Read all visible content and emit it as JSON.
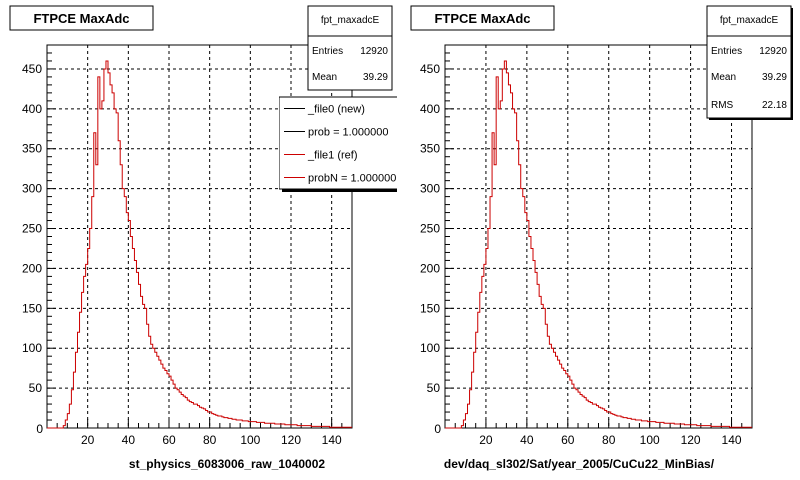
{
  "chart_data": [
    {
      "type": "histogram",
      "title": "FTPCE MaxAdc",
      "xlabel": "st_physics_6083006_raw_1040002",
      "ylabel": "",
      "xlim": [
        0,
        150
      ],
      "ylim": [
        0,
        480
      ],
      "xticks": [
        20,
        40,
        60,
        80,
        100,
        120,
        140
      ],
      "yticks": [
        50,
        100,
        150,
        200,
        250,
        300,
        350,
        400,
        450
      ],
      "grid": true,
      "bin_width": 1,
      "bin_start": 0,
      "series": [
        {
          "name": "_file1 (ref)",
          "color": "#cc0000",
          "values": [
            0,
            0,
            0,
            0,
            0,
            0,
            0,
            0,
            3,
            10,
            18,
            30,
            48,
            70,
            95,
            120,
            145,
            170,
            190,
            205,
            225,
            250,
            290,
            370,
            330,
            440,
            400,
            410,
            450,
            460,
            445,
            430,
            420,
            400,
            395,
            360,
            330,
            300,
            290,
            270,
            260,
            240,
            225,
            210,
            195,
            180,
            165,
            155,
            150,
            130,
            115,
            105,
            100,
            95,
            90,
            85,
            80,
            75,
            72,
            68,
            65,
            60,
            55,
            50,
            48,
            45,
            42,
            40,
            38,
            35,
            33,
            32,
            30,
            30,
            28,
            26,
            25,
            24,
            22,
            20,
            20,
            18,
            17,
            16,
            15,
            15,
            14,
            13,
            13,
            12,
            12,
            11,
            11,
            10,
            10,
            10,
            9,
            9,
            9,
            8,
            8,
            8,
            8,
            7,
            7,
            7,
            7,
            6,
            6,
            6,
            6,
            6,
            5,
            5,
            5,
            5,
            5,
            4,
            4,
            4,
            4,
            4,
            4,
            3,
            3,
            3,
            3,
            3,
            3,
            3,
            2,
            2,
            2,
            2,
            2,
            2,
            2,
            2,
            2,
            1,
            1,
            1,
            1,
            1,
            1,
            1,
            1,
            1,
            1,
            1
          ]
        }
      ],
      "stats": {
        "name": "fpt_maxadcE",
        "entries_label": "Entries",
        "entries": "12920",
        "mean_label": "Mean",
        "mean": "39.29"
      },
      "legend": {
        "items": [
          {
            "label": "_file0 (new)",
            "color": "#000000"
          },
          {
            "label": "prob = 1.000000",
            "color": "#000000"
          },
          {
            "label": "_file1 (ref)",
            "color": "#cc0000"
          },
          {
            "label": "probN = 1.000000",
            "color": "#cc0000"
          }
        ]
      }
    },
    {
      "type": "histogram",
      "title": "FTPCE MaxAdc",
      "xlabel": "dev/daq_sl302/Sat/year_2005/CuCu22_MinBias/",
      "ylabel": "",
      "xlim": [
        0,
        150
      ],
      "ylim": [
        0,
        480
      ],
      "xticks": [
        20,
        40,
        60,
        80,
        100,
        120,
        140
      ],
      "yticks": [
        50,
        100,
        150,
        200,
        250,
        300,
        350,
        400,
        450
      ],
      "grid": true,
      "bin_width": 1,
      "bin_start": 0,
      "series": [
        {
          "name": "",
          "color": "#cc0000",
          "values": [
            0,
            0,
            0,
            0,
            0,
            0,
            0,
            0,
            3,
            10,
            18,
            30,
            48,
            70,
            95,
            120,
            145,
            170,
            190,
            205,
            225,
            250,
            290,
            370,
            330,
            440,
            400,
            410,
            450,
            460,
            445,
            430,
            420,
            400,
            395,
            360,
            330,
            300,
            290,
            270,
            260,
            240,
            225,
            210,
            195,
            180,
            165,
            155,
            150,
            130,
            115,
            105,
            100,
            95,
            90,
            85,
            80,
            75,
            72,
            68,
            65,
            60,
            55,
            50,
            48,
            45,
            42,
            40,
            38,
            35,
            33,
            32,
            30,
            30,
            28,
            26,
            25,
            24,
            22,
            20,
            20,
            18,
            17,
            16,
            15,
            15,
            14,
            13,
            13,
            12,
            12,
            11,
            11,
            10,
            10,
            10,
            9,
            9,
            9,
            8,
            8,
            8,
            8,
            7,
            7,
            7,
            7,
            6,
            6,
            6,
            6,
            6,
            5,
            5,
            5,
            5,
            5,
            4,
            4,
            4,
            4,
            4,
            4,
            3,
            3,
            3,
            3,
            3,
            3,
            3,
            2,
            2,
            2,
            2,
            2,
            2,
            2,
            2,
            2,
            1,
            1,
            1,
            1,
            1,
            1,
            1,
            1,
            1,
            1,
            1
          ]
        }
      ],
      "stats": {
        "name": "fpt_maxadcE",
        "entries_label": "Entries",
        "entries": "12920",
        "mean_label": "Mean",
        "mean": "39.29",
        "rms_label": "RMS",
        "rms": "22.18"
      }
    }
  ]
}
